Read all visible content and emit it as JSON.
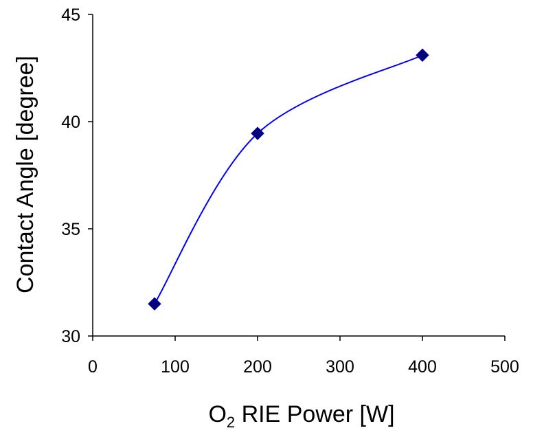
{
  "chart_data": {
    "type": "line",
    "xlabel": {
      "main": "O",
      "sub": "2",
      "rest": " RIE Power [W]"
    },
    "ylabel": "Contact Angle [degree]",
    "xlim": [
      0,
      500
    ],
    "ylim": [
      30,
      45
    ],
    "xticks": [
      0,
      100,
      200,
      300,
      400,
      500
    ],
    "yticks": [
      30,
      35,
      40,
      45
    ],
    "grid": false,
    "legend": "none",
    "series": [
      {
        "x": [
          75,
          200,
          400
        ],
        "y": [
          31.5,
          39.45,
          43.1
        ],
        "color": "#0000ff",
        "marker": "diamond",
        "marker_color": "#000080"
      }
    ]
  }
}
